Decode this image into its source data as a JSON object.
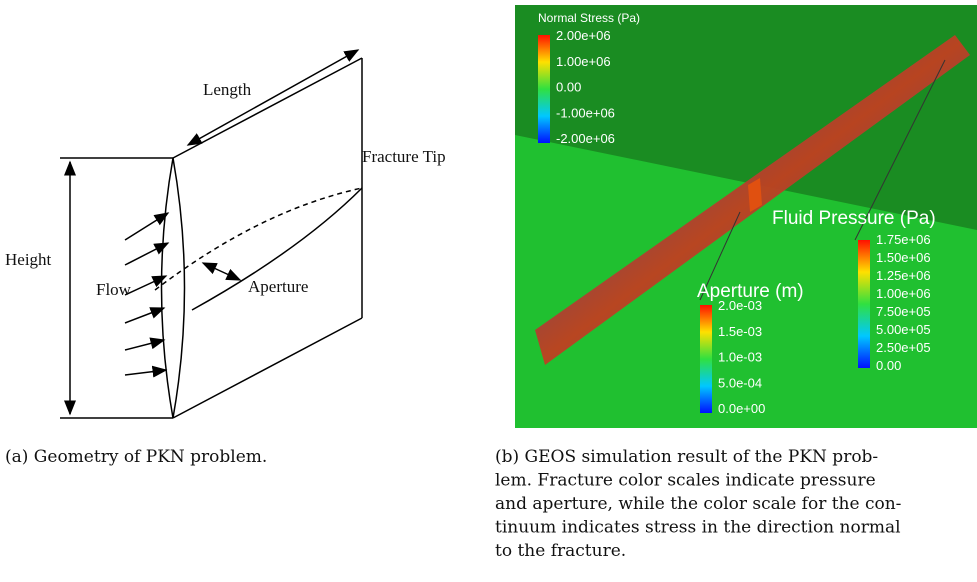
{
  "figure_a": {
    "labels": {
      "length": "Length",
      "height": "Height",
      "flow": "Flow",
      "aperture": "Aperture",
      "fracture_tip": "Fracture Tip"
    },
    "caption": "(a)  Geometry  of  PKN  problem."
  },
  "figure_b": {
    "colorbars": [
      {
        "title": "Normal Stress (Pa)",
        "labels": [
          "2.00e+06",
          "1.00e+06",
          "0.00",
          "-1.00e+06",
          "-2.00e+06"
        ]
      },
      {
        "title": "Fluid Pressure (Pa)",
        "labels": [
          "1.75e+06",
          "1.50e+06",
          "1.25e+06",
          "1.00e+06",
          "7.50e+05",
          "5.00e+05",
          "2.50e+05",
          "0.00"
        ]
      },
      {
        "title": "Aperture (m)",
        "labels": [
          "2.0e-03",
          "1.5e-03",
          "1.0e-03",
          "5.0e-04",
          "0.0e+00"
        ]
      }
    ],
    "caption_lines": [
      "(b)  GEOS simulation result of the PKN prob-",
      "lem.    Fracture color scales indicate pressure",
      "and aperture, while the color scale for the con-",
      "tinuum indicates stress in the direction normal",
      "to the fracture."
    ]
  }
}
